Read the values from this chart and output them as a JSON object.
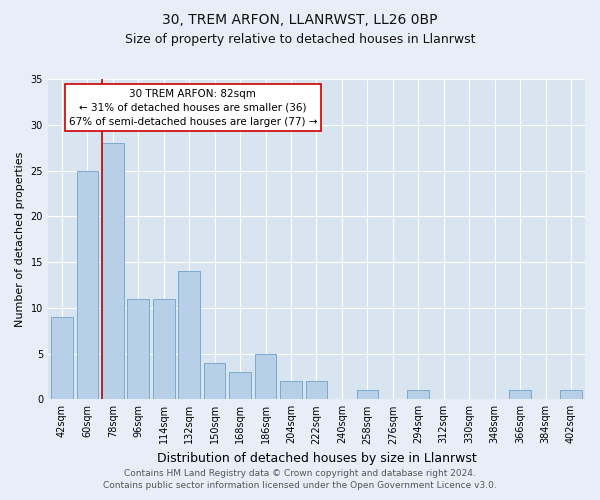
{
  "title1": "30, TREM ARFON, LLANRWST, LL26 0BP",
  "title2": "Size of property relative to detached houses in Llanrwst",
  "xlabel": "Distribution of detached houses by size in Llanrwst",
  "ylabel": "Number of detached properties",
  "categories": [
    "42sqm",
    "60sqm",
    "78sqm",
    "96sqm",
    "114sqm",
    "132sqm",
    "150sqm",
    "168sqm",
    "186sqm",
    "204sqm",
    "222sqm",
    "240sqm",
    "258sqm",
    "276sqm",
    "294sqm",
    "312sqm",
    "330sqm",
    "348sqm",
    "366sqm",
    "384sqm",
    "402sqm"
  ],
  "values": [
    9,
    25,
    28,
    11,
    11,
    14,
    4,
    3,
    5,
    2,
    2,
    0,
    1,
    0,
    1,
    0,
    0,
    0,
    1,
    0,
    1
  ],
  "bar_color": "#b8cfe8",
  "bar_edge_color": "#7aaace",
  "highlight_index": 2,
  "highlight_line_color": "#cc0000",
  "ylim": [
    0,
    35
  ],
  "yticks": [
    0,
    5,
    10,
    15,
    20,
    25,
    30,
    35
  ],
  "annotation_title": "30 TREM ARFON: 82sqm",
  "annotation_line1": "← 31% of detached houses are smaller (36)",
  "annotation_line2": "67% of semi-detached houses are larger (77) →",
  "annotation_box_color": "#ffffff",
  "annotation_box_edge_color": "#cc0000",
  "footer1": "Contains HM Land Registry data © Crown copyright and database right 2024.",
  "footer2": "Contains public sector information licensed under the Open Government Licence v3.0.",
  "background_color": "#e8eef7",
  "plot_background_color": "#d8e4f0",
  "grid_color": "#ffffff",
  "title1_fontsize": 10,
  "title2_fontsize": 9,
  "xlabel_fontsize": 9,
  "ylabel_fontsize": 8,
  "tick_fontsize": 7,
  "annotation_fontsize": 7.5,
  "footer_fontsize": 6.5
}
